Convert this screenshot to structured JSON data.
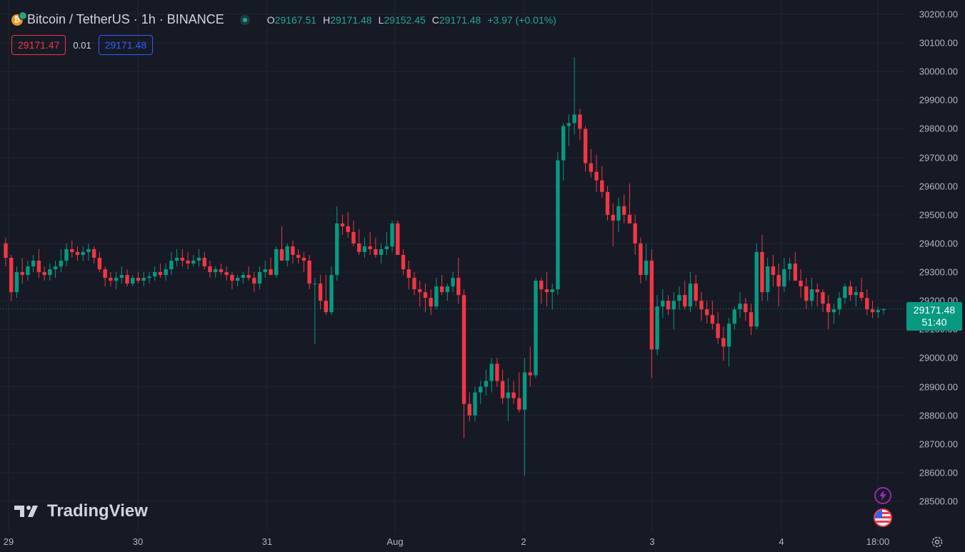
{
  "header": {
    "symbol_title": "Bitcoin / TetherUS · 1h · BINANCE",
    "ohlc": {
      "o_label": "O",
      "o_value": "29167.51",
      "h_label": "H",
      "h_value": "29171.48",
      "l_label": "L",
      "l_value": "29152.45",
      "c_label": "C",
      "c_value": "29171.48",
      "change": "+3.97 (+0.01%)"
    },
    "bid": "29171.47",
    "spread": "0.01",
    "ask": "29171.48"
  },
  "last_price": {
    "price": "29171.48",
    "countdown": "51:40"
  },
  "watermark": "TradingView",
  "icons": {
    "status": "market-open-dot",
    "lightning": "lightning-icon",
    "flag": "us-flag-icon",
    "settings": "gear-icon"
  },
  "colors": {
    "up": "#089981",
    "down": "#f23645",
    "background": "#161a25",
    "grid": "#232632",
    "bid": "#f23645",
    "ask": "#2962ff"
  },
  "chart_data": {
    "type": "candlestick",
    "price_axis": [
      "30200.00",
      "30100.00",
      "30000.00",
      "29900.00",
      "29800.00",
      "29700.00",
      "29600.00",
      "29500.00",
      "29400.00",
      "29300.00",
      "29200.00",
      "29100.00",
      "29000.00",
      "28900.00",
      "28800.00",
      "28700.00",
      "28600.00",
      "28500.00"
    ],
    "time_axis": [
      "29",
      "30",
      "31",
      "Aug",
      "2",
      "3",
      "4",
      "18:00"
    ],
    "ylim": [
      28450,
      30250
    ],
    "last_price_line": 29171.48,
    "candles": [
      [
        29400,
        29420,
        29320,
        29350
      ],
      [
        29350,
        29360,
        29200,
        29230
      ],
      [
        29230,
        29320,
        29210,
        29300
      ],
      [
        29300,
        29350,
        29260,
        29290
      ],
      [
        29290,
        29340,
        29270,
        29320
      ],
      [
        29320,
        29360,
        29300,
        29340
      ],
      [
        29340,
        29380,
        29280,
        29300
      ],
      [
        29300,
        29320,
        29270,
        29290
      ],
      [
        29290,
        29330,
        29270,
        29310
      ],
      [
        29310,
        29340,
        29280,
        29320
      ],
      [
        29320,
        29380,
        29300,
        29340
      ],
      [
        29340,
        29400,
        29320,
        29380
      ],
      [
        29380,
        29410,
        29350,
        29370
      ],
      [
        29370,
        29390,
        29340,
        29360
      ],
      [
        29360,
        29390,
        29340,
        29370
      ],
      [
        29370,
        29400,
        29340,
        29380
      ],
      [
        29380,
        29390,
        29330,
        29350
      ],
      [
        29350,
        29370,
        29300,
        29310
      ],
      [
        29310,
        29320,
        29250,
        29280
      ],
      [
        29280,
        29300,
        29250,
        29270
      ],
      [
        29270,
        29300,
        29240,
        29280
      ],
      [
        29280,
        29320,
        29260,
        29290
      ],
      [
        29290,
        29310,
        29250,
        29260
      ],
      [
        29260,
        29290,
        29250,
        29280
      ],
      [
        29280,
        29300,
        29260,
        29270
      ],
      [
        29270,
        29300,
        29250,
        29280
      ],
      [
        29280,
        29300,
        29260,
        29285
      ],
      [
        29285,
        29320,
        29270,
        29300
      ],
      [
        29300,
        29330,
        29280,
        29290
      ],
      [
        29290,
        29330,
        29270,
        29310
      ],
      [
        29310,
        29370,
        29290,
        29340
      ],
      [
        29340,
        29380,
        29320,
        29350
      ],
      [
        29350,
        29380,
        29320,
        29340
      ],
      [
        29340,
        29370,
        29310,
        29330
      ],
      [
        29330,
        29360,
        29320,
        29340
      ],
      [
        29340,
        29380,
        29320,
        29350
      ],
      [
        29350,
        29370,
        29310,
        29320
      ],
      [
        29320,
        29340,
        29280,
        29300
      ],
      [
        29300,
        29320,
        29280,
        29310
      ],
      [
        29310,
        29330,
        29290,
        29300
      ],
      [
        29300,
        29320,
        29270,
        29290
      ],
      [
        29290,
        29300,
        29240,
        29270
      ],
      [
        29270,
        29290,
        29250,
        29280
      ],
      [
        29280,
        29300,
        29260,
        29290
      ],
      [
        29290,
        29320,
        29270,
        29280
      ],
      [
        29280,
        29300,
        29230,
        29260
      ],
      [
        29260,
        29320,
        29240,
        29300
      ],
      [
        29300,
        29340,
        29280,
        29310
      ],
      [
        29310,
        29350,
        29290,
        29290
      ],
      [
        29290,
        29390,
        29280,
        29380
      ],
      [
        29380,
        29460,
        29340,
        29340
      ],
      [
        29340,
        29400,
        29320,
        29390
      ],
      [
        29390,
        29410,
        29330,
        29360
      ],
      [
        29360,
        29380,
        29330,
        29350
      ],
      [
        29350,
        29370,
        29300,
        29340
      ],
      [
        29340,
        29360,
        29240,
        29260
      ],
      [
        29260,
        29280,
        29050,
        29260
      ],
      [
        29260,
        29290,
        29170,
        29200
      ],
      [
        29200,
        29290,
        29150,
        29160
      ],
      [
        29160,
        29320,
        29150,
        29290
      ],
      [
        29290,
        29530,
        29270,
        29470
      ],
      [
        29470,
        29500,
        29430,
        29460
      ],
      [
        29460,
        29510,
        29420,
        29440
      ],
      [
        29440,
        29480,
        29390,
        29400
      ],
      [
        29400,
        29450,
        29360,
        29370
      ],
      [
        29370,
        29420,
        29350,
        29390
      ],
      [
        29390,
        29440,
        29360,
        29380
      ],
      [
        29380,
        29420,
        29350,
        29360
      ],
      [
        29360,
        29400,
        29330,
        29380
      ],
      [
        29380,
        29440,
        29360,
        29390
      ],
      [
        29390,
        29480,
        29370,
        29470
      ],
      [
        29470,
        29480,
        29360,
        29360
      ],
      [
        29360,
        29380,
        29290,
        29310
      ],
      [
        29310,
        29340,
        29240,
        29280
      ],
      [
        29280,
        29300,
        29220,
        29240
      ],
      [
        29240,
        29270,
        29180,
        29230
      ],
      [
        29230,
        29260,
        29160,
        29210
      ],
      [
        29210,
        29240,
        29150,
        29180
      ],
      [
        29180,
        29280,
        29170,
        29250
      ],
      [
        29250,
        29290,
        29220,
        29230
      ],
      [
        29230,
        29260,
        29200,
        29250
      ],
      [
        29250,
        29300,
        29230,
        29280
      ],
      [
        29280,
        29350,
        29190,
        29220
      ],
      [
        29220,
        29240,
        28720,
        28840
      ],
      [
        28840,
        28880,
        28780,
        28800
      ],
      [
        28800,
        28900,
        28780,
        28880
      ],
      [
        28880,
        28920,
        28840,
        28900
      ],
      [
        28900,
        28960,
        28870,
        28920
      ],
      [
        28920,
        29000,
        28880,
        28980
      ],
      [
        28980,
        29000,
        28900,
        28920
      ],
      [
        28920,
        28960,
        28840,
        28860
      ],
      [
        28860,
        28930,
        28780,
        28880
      ],
      [
        28880,
        28920,
        28840,
        28860
      ],
      [
        28860,
        28950,
        28810,
        28820
      ],
      [
        28820,
        29000,
        28590,
        28950
      ],
      [
        28950,
        29040,
        28900,
        28940
      ],
      [
        28940,
        29280,
        28930,
        29270
      ],
      [
        29270,
        29280,
        29190,
        29240
      ],
      [
        29240,
        29300,
        29180,
        29230
      ],
      [
        29230,
        29260,
        29170,
        29240
      ],
      [
        29240,
        29720,
        29220,
        29690
      ],
      [
        29690,
        29820,
        29620,
        29810
      ],
      [
        29810,
        29850,
        29740,
        29820
      ],
      [
        29820,
        30050,
        29780,
        29850
      ],
      [
        29850,
        29870,
        29760,
        29800
      ],
      [
        29800,
        29810,
        29650,
        29680
      ],
      [
        29680,
        29730,
        29630,
        29650
      ],
      [
        29650,
        29710,
        29580,
        29620
      ],
      [
        29620,
        29670,
        29560,
        29580
      ],
      [
        29580,
        29600,
        29480,
        29500
      ],
      [
        29500,
        29540,
        29390,
        29480
      ],
      [
        29480,
        29560,
        29440,
        29530
      ],
      [
        29530,
        29570,
        29470,
        29500
      ],
      [
        29500,
        29610,
        29480,
        29470
      ],
      [
        29470,
        29500,
        29360,
        29400
      ],
      [
        29400,
        29420,
        29260,
        29290
      ],
      [
        29290,
        29400,
        29270,
        29340
      ],
      [
        29340,
        29380,
        28930,
        29030
      ],
      [
        29030,
        29220,
        29010,
        29180
      ],
      [
        29180,
        29240,
        29140,
        29200
      ],
      [
        29200,
        29220,
        29150,
        29170
      ],
      [
        29170,
        29230,
        29100,
        29200
      ],
      [
        29200,
        29250,
        29170,
        29220
      ],
      [
        29220,
        29270,
        29170,
        29180
      ],
      [
        29180,
        29300,
        29160,
        29260
      ],
      [
        29260,
        29290,
        29180,
        29200
      ],
      [
        29200,
        29230,
        29130,
        29170
      ],
      [
        29170,
        29200,
        29120,
        29150
      ],
      [
        29150,
        29200,
        29100,
        29120
      ],
      [
        29120,
        29160,
        29050,
        29070
      ],
      [
        29070,
        29110,
        28990,
        29040
      ],
      [
        29040,
        29140,
        28970,
        29120
      ],
      [
        29120,
        29180,
        29100,
        29170
      ],
      [
        29170,
        29230,
        29140,
        29190
      ],
      [
        29190,
        29210,
        29130,
        29160
      ],
      [
        29160,
        29190,
        29080,
        29110
      ],
      [
        29110,
        29400,
        29100,
        29370
      ],
      [
        29370,
        29430,
        29200,
        29230
      ],
      [
        29230,
        29350,
        29200,
        29320
      ],
      [
        29320,
        29360,
        29250,
        29290
      ],
      [
        29290,
        29330,
        29180,
        29250
      ],
      [
        29250,
        29350,
        29230,
        29310
      ],
      [
        29310,
        29350,
        29270,
        29330
      ],
      [
        29330,
        29370,
        29280,
        29270
      ],
      [
        29270,
        29310,
        29210,
        29250
      ],
      [
        29250,
        29280,
        29170,
        29200
      ],
      [
        29200,
        29280,
        29180,
        29240
      ],
      [
        29240,
        29260,
        29180,
        29230
      ],
      [
        29230,
        29240,
        29160,
        29190
      ],
      [
        29190,
        29220,
        29100,
        29160
      ],
      [
        29160,
        29190,
        29120,
        29170
      ],
      [
        29170,
        29230,
        29150,
        29210
      ],
      [
        29210,
        29260,
        29190,
        29250
      ],
      [
        29250,
        29270,
        29200,
        29220
      ],
      [
        29220,
        29250,
        29180,
        29230
      ],
      [
        29230,
        29280,
        29200,
        29210
      ],
      [
        29210,
        29240,
        29150,
        29170
      ],
      [
        29170,
        29200,
        29140,
        29160
      ],
      [
        29160,
        29180,
        29140,
        29167.51
      ],
      [
        29167.51,
        29171.48,
        29152.45,
        29171.48
      ]
    ]
  }
}
